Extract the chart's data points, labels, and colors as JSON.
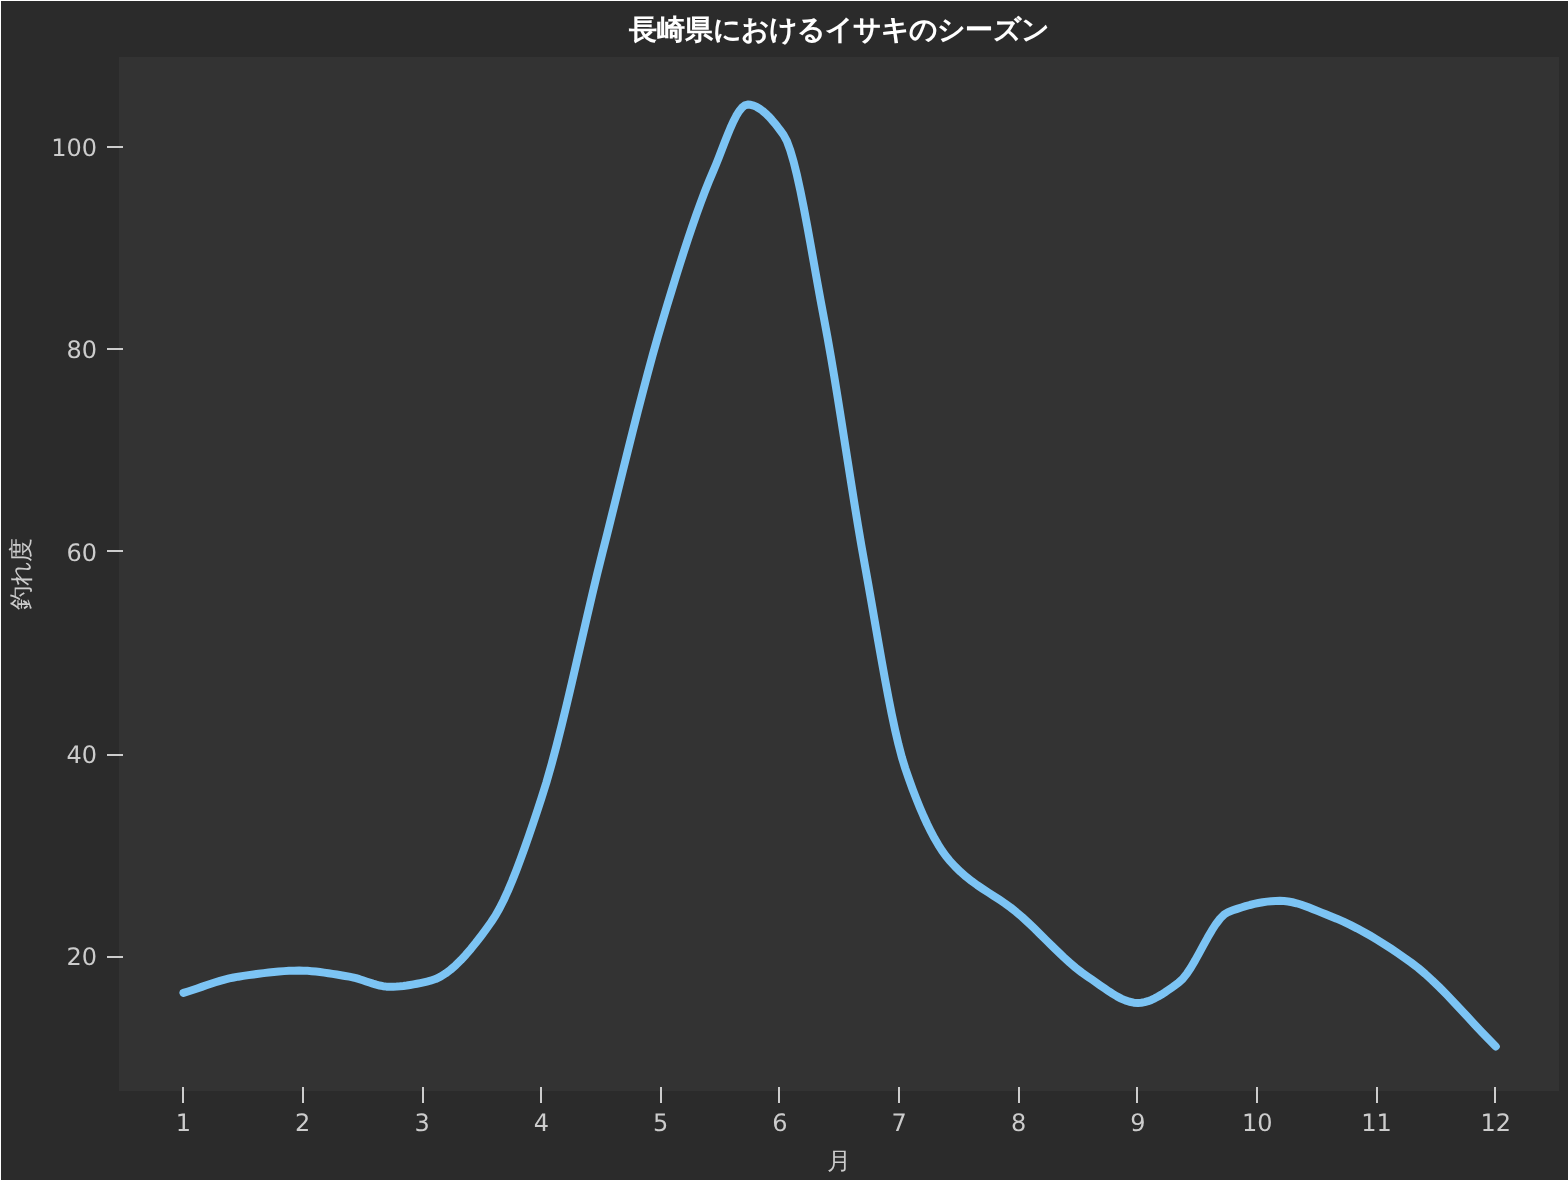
{
  "chart_data": {
    "type": "line",
    "title": "長崎県におけるイサキのシーズン",
    "xlabel": "月",
    "ylabel": "釣れ度",
    "x": [
      1,
      1.46,
      1.97,
      2.39,
      2.73,
      3.07,
      3.58,
      4.0,
      4.51,
      5.02,
      5.44,
      5.73,
      6.03,
      6.37,
      6.71,
      7.05,
      7.42,
      7.98,
      8.58,
      9.0,
      9.34,
      9.76,
      10.19,
      10.61,
      11.29,
      12
    ],
    "series": [
      {
        "color": "#7cc4f4",
        "values": [
          16.4,
          18.0,
          18.6,
          18.0,
          17.0,
          17.6,
          23.4,
          35.6,
          59.8,
          83,
          97.6,
          104.2,
          101.2,
          83,
          58.8,
          38.6,
          29.5,
          24.4,
          18.0,
          15.4,
          17.4,
          24.4,
          25.5,
          24.0,
          19.4,
          11.1
        ]
      }
    ],
    "xlim": [
      0.46,
      12.53
    ],
    "ylim": [
      6.7,
      108.9
    ],
    "xticks": [
      1,
      2,
      3,
      4,
      5,
      6,
      7,
      8,
      9,
      10,
      11,
      12
    ],
    "yticks": [
      20,
      40,
      60,
      80,
      100
    ],
    "grid": false,
    "marker": "none",
    "line_style": "solid"
  }
}
